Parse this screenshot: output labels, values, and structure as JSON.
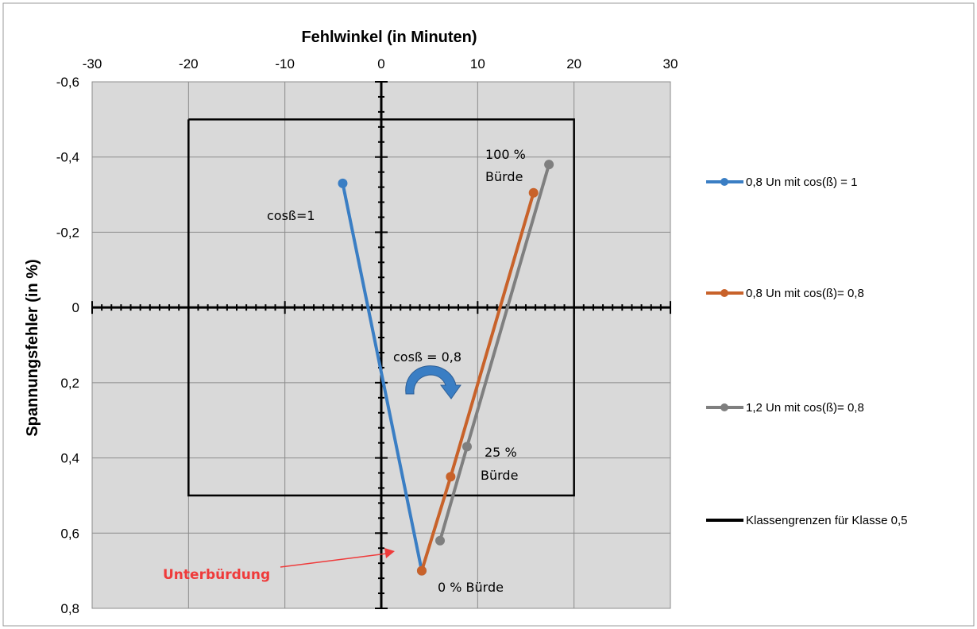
{
  "chart_data": {
    "type": "scatter",
    "xlabel": "Fehlwinkel (in Minuten)",
    "ylabel": "Spannungsfehler (in %)",
    "xlim": [
      -30,
      30
    ],
    "ylim": [
      -0.6,
      0.8
    ],
    "y_inverted": true,
    "x_axis_position": "top",
    "grid": true,
    "legend_position": "right",
    "x_ticks": [
      "-30",
      "-20",
      "-10",
      "0",
      "10",
      "20",
      "30"
    ],
    "y_ticks": [
      "-0,6",
      "-0,4",
      "-0,2",
      "0",
      "0,2",
      "0,4",
      "0,6",
      "0,8"
    ],
    "series": [
      {
        "name": "0,8 Un mit cos(ß) = 1",
        "color": "#3a7ec4",
        "markers": true,
        "points": [
          [
            -4,
            -0.33
          ],
          [
            4.2,
            0.7
          ]
        ]
      },
      {
        "name": "0,8 Un mit cos(ß)= 0,8",
        "color": "#c8622a",
        "markers": true,
        "points": [
          [
            4.2,
            0.7
          ],
          [
            7.2,
            0.45
          ],
          [
            15.8,
            -0.305
          ]
        ]
      },
      {
        "name": "1,2 Un mit cos(ß)= 0,8",
        "color": "#7f7f7f",
        "markers": true,
        "points": [
          [
            6.1,
            0.62
          ],
          [
            8.9,
            0.37
          ],
          [
            17.4,
            -0.38
          ]
        ]
      },
      {
        "name": "Klassengrenzen für Klasse 0,5",
        "color": "#000000",
        "markers": false,
        "points": [
          [
            -20,
            -0.5
          ],
          [
            20,
            -0.5
          ],
          [
            20,
            0.5
          ],
          [
            -20,
            0.5
          ],
          [
            -20,
            -0.5
          ]
        ]
      }
    ],
    "annotations": {
      "cos1": "cosß=1",
      "cos08": "cosß = 0,8",
      "full_load_1": "100 %",
      "full_load_2": "Bürde",
      "quarter_load_1": "25 %",
      "quarter_load_2": "Bürde",
      "zero_load": "0 % Bürde",
      "underburden": "Unterbürdung"
    },
    "annotation_colors": {
      "underburden": "#ef3b3b",
      "curved_arrow": "#3a7ec4"
    }
  }
}
